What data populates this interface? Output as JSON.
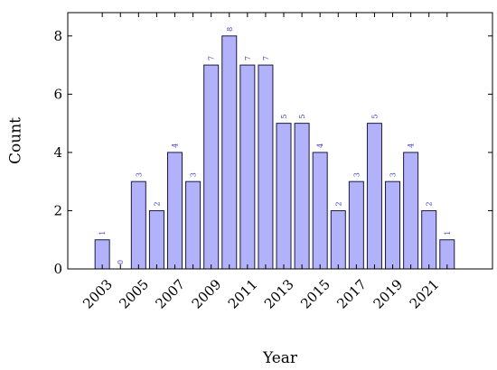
{
  "chart_data": {
    "type": "bar",
    "title": "",
    "xlabel": "Year",
    "ylabel": "Count",
    "x": [
      2003,
      2004,
      2005,
      2006,
      2007,
      2008,
      2009,
      2010,
      2011,
      2012,
      2013,
      2014,
      2015,
      2016,
      2017,
      2018,
      2019,
      2020,
      2021,
      2022
    ],
    "values": [
      1,
      0,
      3,
      2,
      4,
      3,
      7,
      8,
      7,
      7,
      5,
      5,
      4,
      2,
      3,
      5,
      3,
      4,
      2,
      1
    ],
    "x_tick_labels": [
      "2003",
      "2005",
      "2007",
      "2009",
      "2011",
      "2013",
      "2015",
      "2017",
      "2019",
      "2021"
    ],
    "y_ticks": [
      0,
      2,
      4,
      6,
      8
    ],
    "ylim": [
      0,
      8.8
    ],
    "xlim": [
      2001.1,
      2024.5
    ],
    "bar_color": "#b2b2fa",
    "bar_edge_color": "#1a1a40",
    "label_color": "#3c3cc8",
    "grid": false,
    "legend": false
  }
}
